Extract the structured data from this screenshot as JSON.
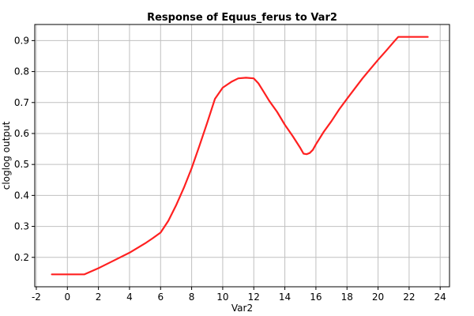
{
  "chart_data": {
    "type": "line",
    "title": "Response of Equus_ferus to Var2",
    "xlabel": "Var2",
    "ylabel": "cloglog output",
    "xlim": [
      -2.1,
      24.6
    ],
    "ylim": [
      0.105,
      0.952
    ],
    "xticks": [
      -2,
      0,
      2,
      4,
      6,
      8,
      10,
      12,
      14,
      16,
      18,
      20,
      22,
      24
    ],
    "yticks": [
      0.2,
      0.3,
      0.4,
      0.5,
      0.6,
      0.7,
      0.8,
      0.9
    ],
    "grid": true,
    "series": [
      {
        "color": "#ff2020",
        "x": [
          -1.0,
          1.1,
          2.0,
          3.0,
          4.0,
          5.0,
          5.5,
          6.0,
          6.5,
          7.0,
          7.5,
          8.0,
          8.5,
          9.0,
          9.5,
          10.0,
          10.3,
          10.6,
          11.0,
          11.5,
          12.0,
          12.3,
          12.6,
          13.0,
          13.5,
          14.0,
          14.5,
          15.0,
          15.2,
          15.4,
          15.6,
          15.8,
          16.0,
          16.5,
          17.0,
          17.5,
          18.0,
          18.5,
          19.0,
          19.5,
          20.0,
          20.5,
          21.0,
          21.3,
          22.0,
          23.2
        ],
        "values": [
          0.145,
          0.145,
          0.165,
          0.19,
          0.215,
          0.245,
          0.262,
          0.28,
          0.318,
          0.368,
          0.425,
          0.488,
          0.56,
          0.635,
          0.712,
          0.748,
          0.758,
          0.768,
          0.778,
          0.78,
          0.778,
          0.762,
          0.738,
          0.705,
          0.67,
          0.628,
          0.592,
          0.553,
          0.535,
          0.533,
          0.537,
          0.547,
          0.565,
          0.605,
          0.64,
          0.678,
          0.712,
          0.745,
          0.778,
          0.808,
          0.838,
          0.866,
          0.895,
          0.912,
          0.912,
          0.912
        ]
      }
    ]
  }
}
